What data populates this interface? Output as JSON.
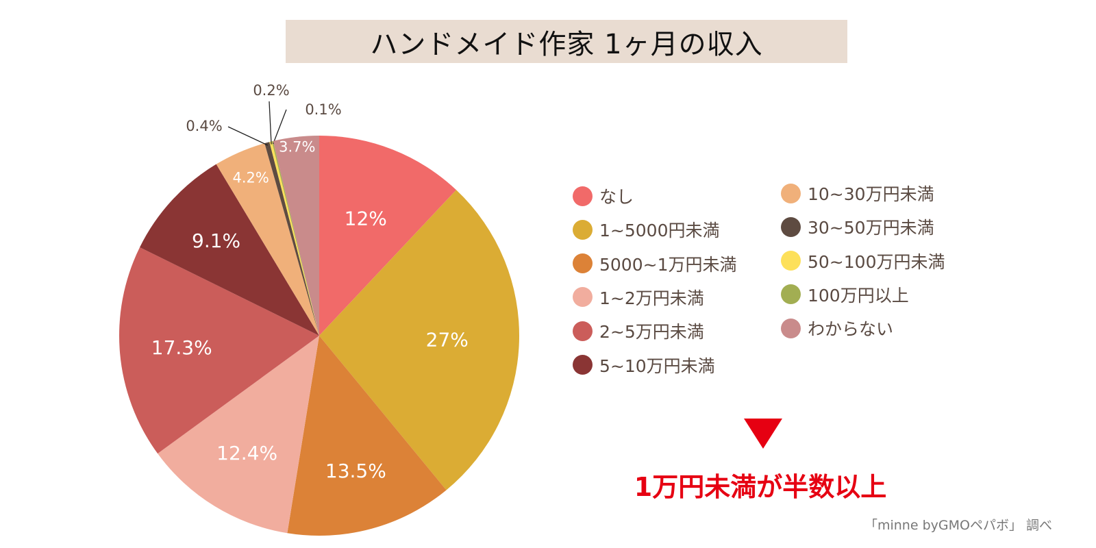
{
  "title": "ハンドメイド作家 1ヶ月の収入",
  "chart_data": {
    "type": "pie",
    "start": "top",
    "direction": "clockwise",
    "slices": [
      {
        "label": "なし",
        "value": 12,
        "display": "12%",
        "color": "#f16a69"
      },
      {
        "label": "1~5000円未満",
        "value": 27,
        "display": "27%",
        "color": "#dbac34"
      },
      {
        "label": "5000~1万円未満",
        "value": 13.5,
        "display": "13.5%",
        "color": "#dc8237"
      },
      {
        "label": "1~2万円未満",
        "value": 12.4,
        "display": "12.4%",
        "color": "#f1ad9e"
      },
      {
        "label": "2~5万円未満",
        "value": 17.3,
        "display": "17.3%",
        "color": "#cb5d5a"
      },
      {
        "label": "5~10万円未満",
        "value": 9.1,
        "display": "9.1%",
        "color": "#8a3534"
      },
      {
        "label": "10~30万円未満",
        "value": 4.2,
        "display": "4.2%",
        "color": "#f0b07a"
      },
      {
        "label": "30~50万円未満",
        "value": 0.4,
        "display": "0.4%",
        "color": "#5e4b41"
      },
      {
        "label": "50~100万円未満",
        "value": 0.2,
        "display": "0.2%",
        "color": "#fde05a"
      },
      {
        "label": "100万円以上",
        "value": 0.1,
        "display": "0.1%",
        "color": "#a2ae52"
      },
      {
        "label": "わからない",
        "value": 3.7,
        "display": "3.7%",
        "color": "#c98b8b"
      }
    ],
    "legend": {
      "placement": "right",
      "columns": 2
    }
  },
  "conclusion": "1万円未満が半数以上",
  "source": "「minne byGMOペパボ」 調べ",
  "accent_color": "#e60012"
}
